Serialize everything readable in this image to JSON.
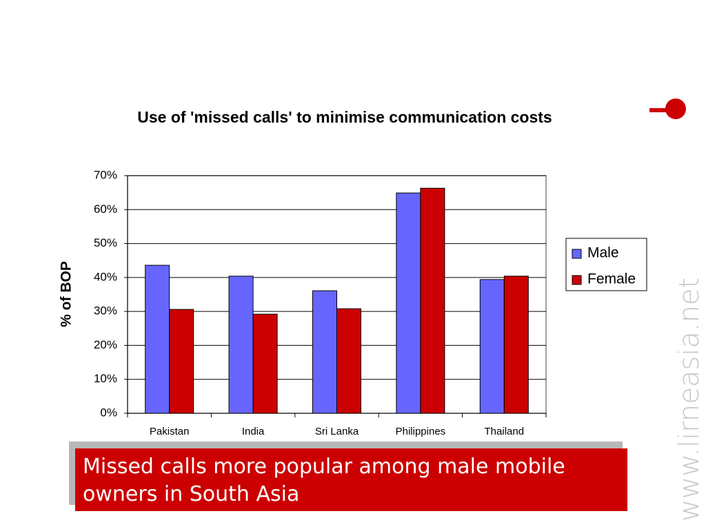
{
  "chart_data": {
    "type": "bar",
    "title": "Use of 'missed calls' to minimise communication costs",
    "y_label": "% of BOP",
    "categories": [
      "Pakistan",
      "India",
      "Sri Lanka",
      "Philippines",
      "Thailand"
    ],
    "series": [
      {
        "name": "Male",
        "color": "#6666ff",
        "values": [
          43.6,
          40.4,
          36.1,
          64.9,
          39.4
        ]
      },
      {
        "name": "Female",
        "color": "#cc0000",
        "values": [
          30.6,
          29.2,
          30.8,
          66.3,
          40.4
        ]
      }
    ],
    "ylim": [
      0,
      70
    ],
    "yticks": [
      {
        "value": 0,
        "label": "0%"
      },
      {
        "value": 10,
        "label": "10%"
      },
      {
        "value": 20,
        "label": "20%"
      },
      {
        "value": 30,
        "label": "30%"
      },
      {
        "value": 40,
        "label": "40%"
      },
      {
        "value": 50,
        "label": "50%"
      },
      {
        "value": 60,
        "label": "60%"
      },
      {
        "value": 70,
        "label": "70%"
      }
    ],
    "grid": true,
    "legend": "right"
  },
  "caption": "Missed calls more popular among male mobile owners in South Asia",
  "watermark": "www.lirneasia.net"
}
